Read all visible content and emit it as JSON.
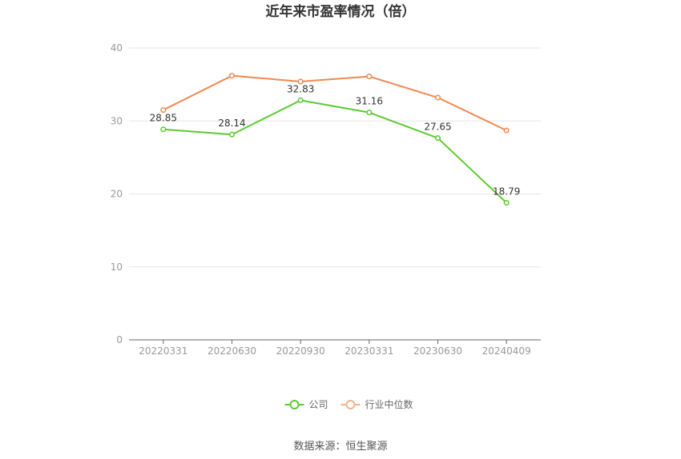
{
  "chart_data": {
    "type": "line",
    "title": "近年来市盈率情况（倍）",
    "categories": [
      "20220331",
      "20220630",
      "20220930",
      "20230331",
      "20230630",
      "20240409"
    ],
    "ylim": [
      0,
      40
    ],
    "yticks": [
      0,
      10,
      20,
      30,
      40
    ],
    "grid": true,
    "legend_position": "bottom-center",
    "series": [
      {
        "name": "公司",
        "values": [
          28.85,
          28.14,
          32.83,
          31.16,
          27.65,
          18.79
        ],
        "labels": [
          "28.85",
          "28.14",
          "32.83",
          "31.16",
          "27.65",
          "18.79"
        ],
        "color": "#5cc92e"
      },
      {
        "name": "行业中位数",
        "values": [
          31.5,
          36.2,
          35.4,
          36.1,
          33.2,
          28.7
        ],
        "color": "#f0884e"
      }
    ]
  },
  "source": "数据来源：恒生聚源"
}
